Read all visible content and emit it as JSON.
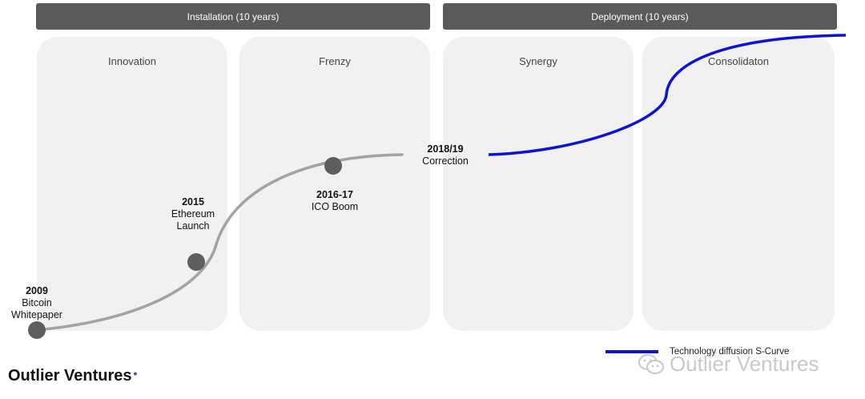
{
  "phases": [
    {
      "label": "Installation (10 years)"
    },
    {
      "label": "Deployment (10 years)"
    }
  ],
  "stages": [
    {
      "label": "Innovation"
    },
    {
      "label": "Frenzy"
    },
    {
      "label": "Synergy"
    },
    {
      "label": "Consolidaton"
    }
  ],
  "milestones": [
    {
      "year": "2009",
      "label": "Bitcoin\nWhitepaper"
    },
    {
      "year": "2015",
      "label": "Ethereum\nLaunch"
    },
    {
      "year": "2016-17",
      "label": "ICO Boom"
    },
    {
      "year": "2018/19",
      "label": "Correction"
    }
  ],
  "legend": {
    "label": "Technology diffusion S-Curve",
    "color": "#0a14d8"
  },
  "colors": {
    "past_curve": "#a3a3a3",
    "future_curve": "#0a14d8",
    "marker": "#5e5e5e"
  },
  "brand": {
    "name": "Outlier Ventures",
    "mark": "•"
  },
  "watermark": {
    "text": "Outlier Ventures",
    "icon": "wechat-icon"
  }
}
